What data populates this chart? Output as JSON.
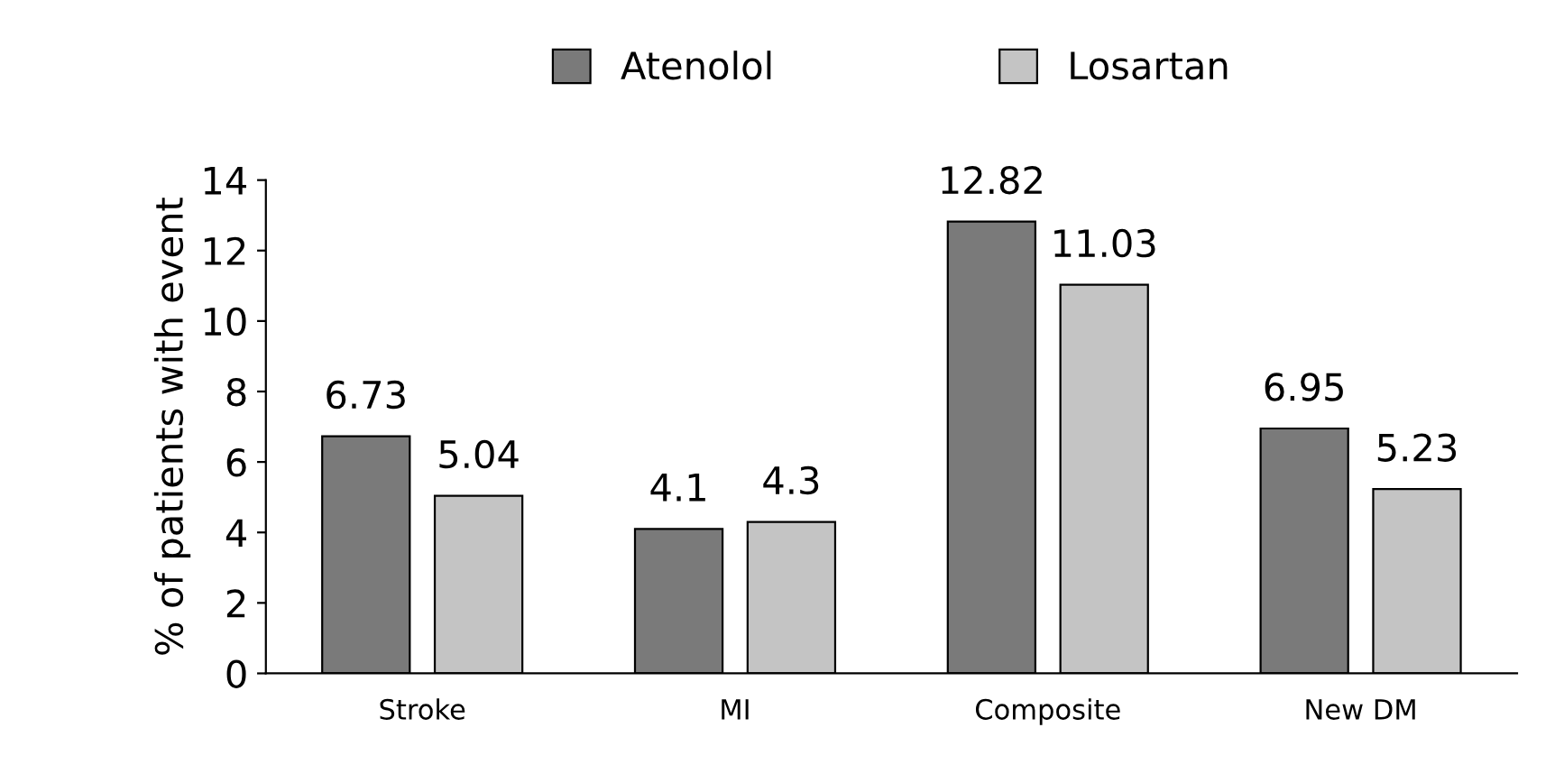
{
  "chart_data": {
    "type": "bar",
    "ylabel": "% of patients with event",
    "categories": [
      "Stroke",
      "MI",
      "Composite",
      "New DM"
    ],
    "series": [
      {
        "name": "Atenolol",
        "color": "#7a7a7a",
        "values": [
          6.73,
          4.1,
          12.82,
          6.95
        ]
      },
      {
        "name": "Losartan",
        "color": "#c4c4c4",
        "values": [
          5.04,
          4.3,
          11.03,
          5.23
        ]
      }
    ],
    "ylim": [
      0,
      14
    ],
    "yticks": [
      0,
      2,
      4,
      6,
      8,
      10,
      12,
      14
    ],
    "data_labels": true,
    "legend": "top",
    "grid": false
  }
}
